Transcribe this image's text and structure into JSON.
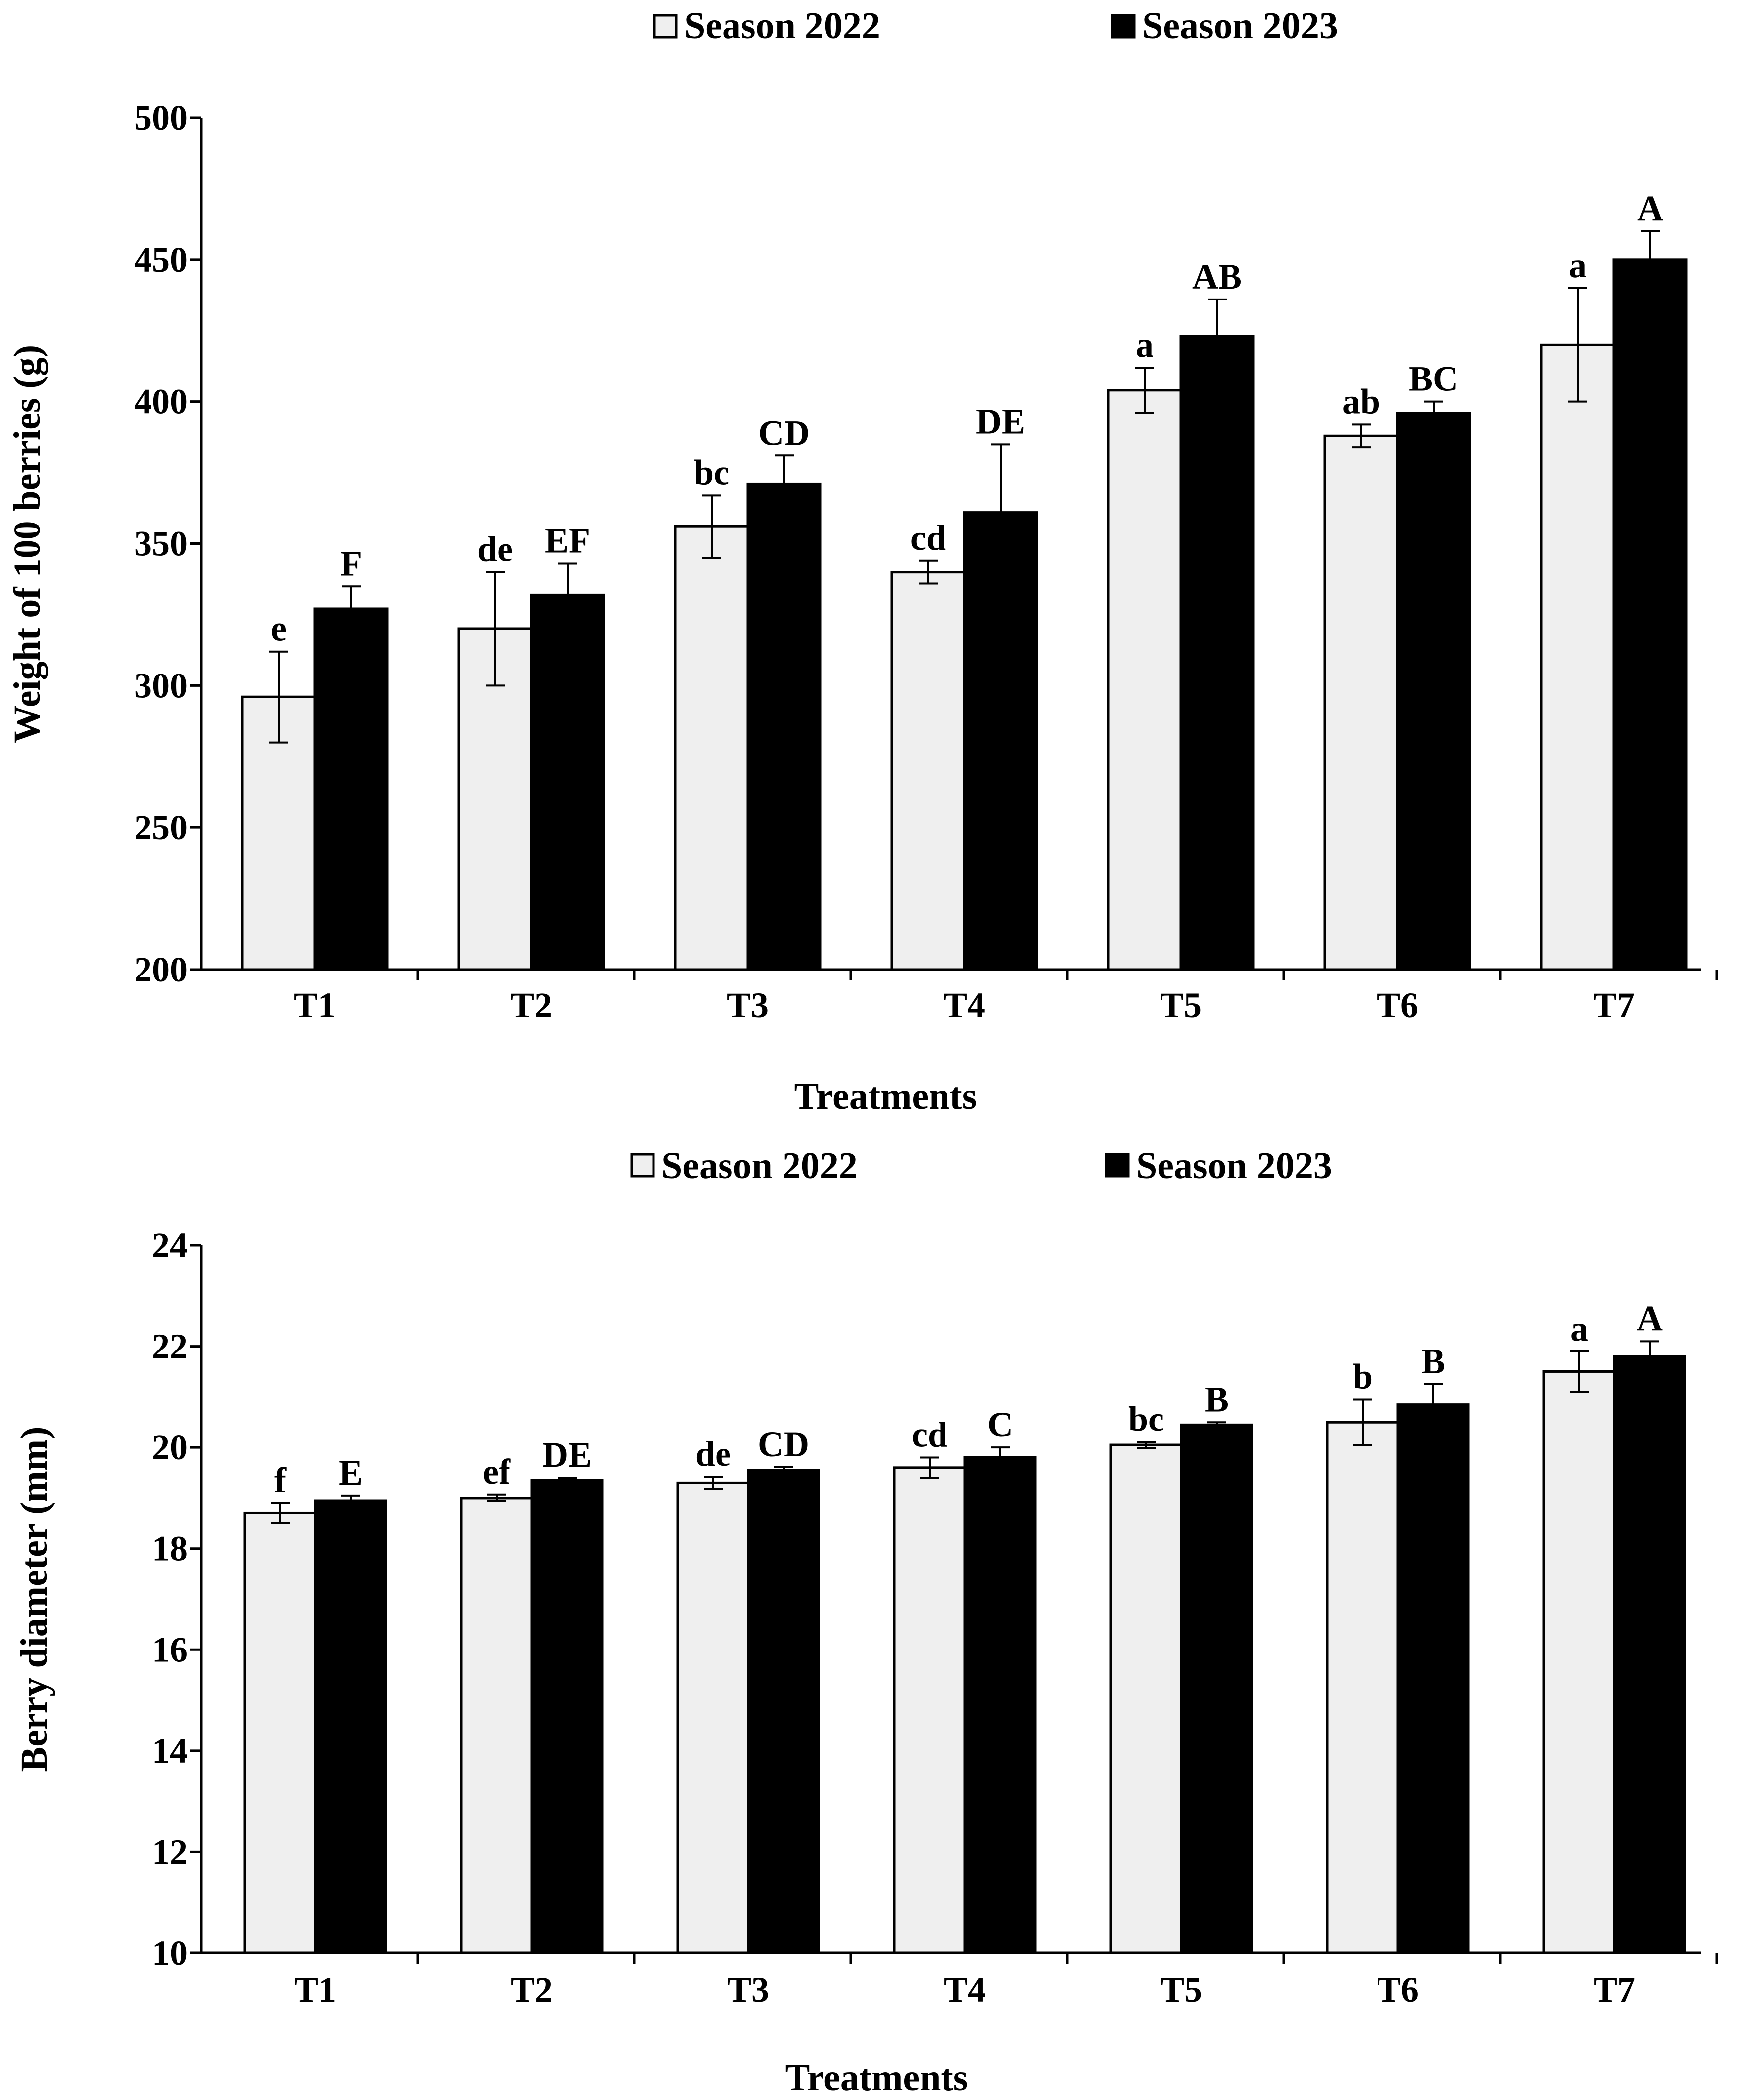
{
  "chart_data": [
    {
      "type": "bar",
      "title": "",
      "xlabel": "Treatments",
      "ylabel": "Weight of 100 berries (g)",
      "ylim": [
        200,
        500
      ],
      "yticks": [
        200,
        250,
        300,
        350,
        400,
        450,
        500
      ],
      "grid": false,
      "legend_position": "top",
      "categories": [
        "T1",
        "T2",
        "T3",
        "T4",
        "T5",
        "T6",
        "T7"
      ],
      "series": [
        {
          "name": "Season 2022",
          "color": "#efefef",
          "values": [
            296,
            320,
            356,
            340,
            404,
            388,
            420
          ],
          "errors": [
            16,
            20,
            11,
            4,
            8,
            4,
            20
          ],
          "labels": [
            "e",
            "de",
            "bc",
            "cd",
            "a",
            "ab",
            "a"
          ]
        },
        {
          "name": "Season 2023",
          "color": "#000000",
          "values": [
            327,
            332,
            371,
            361,
            423,
            396,
            450
          ],
          "errors": [
            8,
            11,
            10,
            24,
            13,
            4,
            10
          ],
          "labels": [
            "F",
            "EF",
            "CD",
            "DE",
            "AB",
            "BC",
            "A"
          ]
        }
      ]
    },
    {
      "type": "bar",
      "title": "",
      "xlabel": "Treatments",
      "ylabel": "Berry diameter (mm)",
      "ylim": [
        10,
        24
      ],
      "yticks": [
        10,
        12,
        14,
        16,
        18,
        20,
        22,
        24
      ],
      "grid": false,
      "legend_position": "top",
      "categories": [
        "T1",
        "T2",
        "T3",
        "T4",
        "T5",
        "T6",
        "T7"
      ],
      "series": [
        {
          "name": "Season 2022",
          "color": "#efefef",
          "values": [
            18.7,
            19.0,
            19.3,
            19.6,
            20.05,
            20.5,
            21.5
          ],
          "errors": [
            0.2,
            0.07,
            0.12,
            0.2,
            0.06,
            0.45,
            0.4
          ],
          "labels": [
            "f",
            "ef",
            "de",
            "cd",
            "bc",
            "b",
            "a"
          ]
        },
        {
          "name": "Season 2023",
          "color": "#000000",
          "values": [
            18.95,
            19.35,
            19.55,
            19.8,
            20.45,
            20.85,
            21.8
          ],
          "errors": [
            0.1,
            0.05,
            0.06,
            0.2,
            0.05,
            0.4,
            0.3
          ],
          "labels": [
            "E",
            "DE",
            "CD",
            "C",
            "B",
            "B",
            "A"
          ]
        }
      ]
    }
  ]
}
